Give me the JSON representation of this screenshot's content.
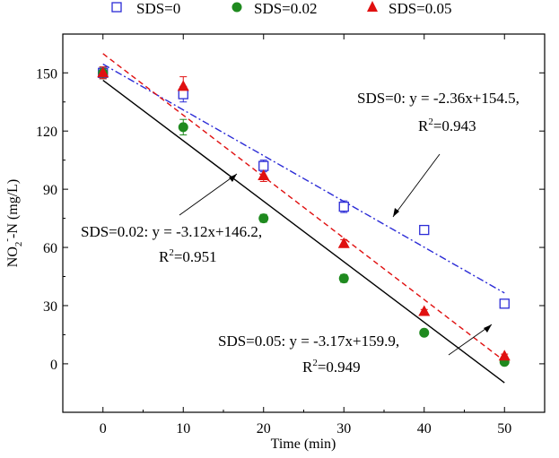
{
  "chart_data": {
    "type": "scatter",
    "xlabel": "Time (min)",
    "ylabel": {
      "main": "NO",
      "sub": "2",
      "sup": "-",
      "rest": "-N (mg/L)"
    },
    "xlim": [
      -5,
      55
    ],
    "ylim": [
      -25,
      170
    ],
    "x_ticks": [
      0,
      10,
      20,
      30,
      40,
      50
    ],
    "y_ticks": [
      0,
      30,
      60,
      90,
      120,
      150
    ],
    "grid": false,
    "legend_placement": "top",
    "series": [
      {
        "name": "SDS=0",
        "marker": "open-square",
        "color": "#2b2bd6",
        "x": [
          0,
          10,
          20,
          30,
          40,
          50
        ],
        "y": [
          150,
          139,
          102,
          81,
          69,
          31
        ],
        "err": [
          3,
          4,
          3,
          3,
          1,
          1
        ],
        "fit": {
          "slope": -2.36,
          "intercept": 154.5,
          "x_range": [
            0,
            50
          ],
          "style": "dash-dot",
          "color": "#2b2bd6"
        }
      },
      {
        "name": "SDS=0.02",
        "marker": "filled-circle",
        "color": "#1f8a1f",
        "x": [
          0,
          10,
          20,
          30,
          40,
          50
        ],
        "y": [
          150,
          122,
          75,
          44,
          16,
          1
        ],
        "err": [
          3,
          4,
          2,
          2,
          1,
          1
        ],
        "fit": {
          "slope": -3.12,
          "intercept": 146.2,
          "x_range": [
            0,
            50
          ],
          "style": "solid",
          "color": "#000000"
        }
      },
      {
        "name": "SDS=0.05",
        "marker": "filled-triangle",
        "color": "#e01010",
        "x": [
          0,
          10,
          20,
          30,
          40,
          50
        ],
        "y": [
          150,
          143,
          97,
          62,
          27,
          4
        ],
        "err": [
          3,
          5,
          3,
          2,
          1,
          1
        ],
        "fit": {
          "slope": -3.17,
          "intercept": 159.9,
          "x_range": [
            0,
            50
          ],
          "style": "dashed",
          "color": "#e01010"
        }
      }
    ],
    "annotations": [
      {
        "line1": "SDS=0: y = -2.36x+154.5,",
        "r2_prefix": "R",
        "r2_sup": "2",
        "r2_value": "=0.943"
      },
      {
        "line1": "SDS=0.02: y = -3.12x+146.2,",
        "r2_prefix": "R",
        "r2_sup": "2",
        "r2_value": "=0.951"
      },
      {
        "line1": "SDS=0.05: y = -3.17x+159.9,",
        "r2_prefix": "R",
        "r2_sup": "2",
        "r2_value": "=0.949"
      }
    ]
  }
}
